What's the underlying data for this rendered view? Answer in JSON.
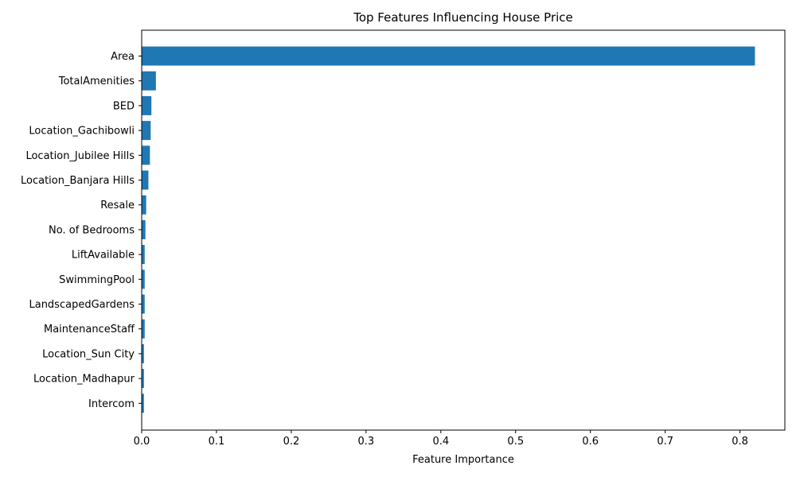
{
  "chart_data": {
    "type": "bar",
    "orientation": "horizontal",
    "title": "Top Features Influencing House Price",
    "xlabel": "Feature Importance",
    "ylabel": "",
    "xlim": [
      0,
      0.86
    ],
    "xticks": [
      0,
      0.1,
      0.2,
      0.3,
      0.4,
      0.5,
      0.6,
      0.7,
      0.8
    ],
    "xtick_labels": [
      "0.0",
      "0.1",
      "0.2",
      "0.3",
      "0.4",
      "0.5",
      "0.6",
      "0.7",
      "0.8"
    ],
    "categories": [
      "Area",
      "TotalAmenities",
      "BED",
      "Location_Gachibowli",
      "Location_Jubilee Hills",
      "Location_Banjara Hills",
      "Resale",
      "No. of Bedrooms",
      "LiftAvailable",
      "SwimmingPool",
      "LandscapedGardens",
      "MaintenanceStaff",
      "Location_Sun City",
      "Location_Madhapur",
      "Intercom"
    ],
    "values": [
      0.82,
      0.019,
      0.013,
      0.012,
      0.011,
      0.009,
      0.006,
      0.005,
      0.004,
      0.004,
      0.004,
      0.004,
      0.003,
      0.003,
      0.003
    ],
    "bar_color": "#1f77b4",
    "grid": false,
    "legend": "none"
  }
}
